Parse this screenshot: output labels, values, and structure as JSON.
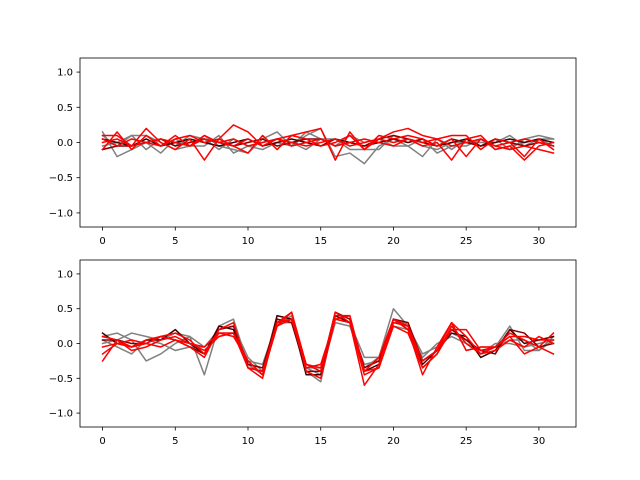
{
  "chart_data": [
    {
      "type": "line",
      "title": "",
      "xlabel": "",
      "ylabel": "",
      "xlim": [
        -1.55,
        32.55
      ],
      "ylim": [
        -1.2,
        1.2
      ],
      "x_ticks": [
        0,
        5,
        10,
        15,
        20,
        25,
        30
      ],
      "y_ticks": [
        -1.0,
        -0.5,
        0.0,
        0.5,
        1.0
      ],
      "grid": false,
      "x": [
        0,
        1,
        2,
        3,
        4,
        5,
        6,
        7,
        8,
        9,
        10,
        11,
        12,
        13,
        14,
        15,
        16,
        17,
        18,
        19,
        20,
        21,
        22,
        23,
        24,
        25,
        26,
        27,
        28,
        29,
        30,
        31
      ],
      "series": [
        {
          "color": "#808080",
          "values": [
            0.15,
            -0.2,
            -0.1,
            0.0,
            -0.15,
            0.05,
            -0.05,
            -0.05,
            0.1,
            -0.15,
            -0.05,
            -0.1,
            0.0,
            -0.05,
            0.1,
            0.2,
            -0.2,
            -0.15,
            -0.3,
            -0.05,
            0.05,
            -0.05,
            -0.2,
            0.05,
            -0.1,
            0.05,
            -0.05,
            0.05,
            -0.1,
            0.05,
            0.1,
            0.05
          ]
        },
        {
          "color": "#808080",
          "values": [
            0.1,
            -0.05,
            0.1,
            0.1,
            0.0,
            -0.1,
            -0.05,
            0.1,
            -0.05,
            -0.1,
            -0.15,
            0.05,
            0.15,
            -0.05,
            0.15,
            0.05,
            0.05,
            -0.1,
            -0.1,
            -0.1,
            0.1,
            0.05,
            -0.05,
            -0.1,
            0.0,
            0.0,
            0.0,
            0.0,
            0.1,
            -0.05,
            0.05,
            0.05
          ]
        },
        {
          "color": "#808080",
          "values": [
            -0.05,
            0.0,
            0.1,
            -0.1,
            0.05,
            -0.05,
            0.1,
            0.05,
            -0.1,
            0.05,
            -0.05,
            0.0,
            0.05,
            0.0,
            -0.1,
            0.05,
            -0.05,
            0.1,
            0.0,
            0.05,
            -0.05,
            -0.05,
            0.05,
            -0.15,
            -0.05,
            -0.05,
            0.05,
            -0.1,
            -0.05,
            0.0,
            0.05,
            -0.05
          ]
        },
        {
          "color": "#400000",
          "values": [
            0.05,
            0.0,
            -0.05,
            0.05,
            -0.05,
            0.0,
            0.05,
            0.0,
            -0.05,
            0.0,
            0.05,
            -0.05,
            0.0,
            0.05,
            0.0,
            -0.05,
            0.05,
            0.0,
            -0.05,
            0.0,
            0.05,
            0.0,
            0.05,
            -0.05,
            0.0,
            0.05,
            -0.05,
            0.0,
            0.05,
            0.0,
            0.05,
            0.0
          ]
        },
        {
          "color": "#800000",
          "values": [
            -0.1,
            -0.05,
            -0.05,
            0.0,
            0.05,
            -0.05,
            0.0,
            0.05,
            0.0,
            -0.05,
            0.0,
            0.05,
            -0.05,
            0.0,
            0.05,
            0.05,
            -0.05,
            0.0,
            -0.05,
            0.05,
            0.1,
            0.05,
            0.0,
            -0.05,
            0.05,
            0.0,
            -0.05,
            0.05,
            0.0,
            -0.05,
            0.0,
            -0.05
          ]
        },
        {
          "color": "#ff0000",
          "values": [
            0.1,
            0.1,
            -0.05,
            0.2,
            0.0,
            -0.1,
            0.05,
            -0.25,
            0.05,
            0.25,
            0.15,
            -0.05,
            0.05,
            0.1,
            0.15,
            0.2,
            -0.25,
            0.15,
            -0.1,
            0.05,
            0.15,
            0.2,
            0.1,
            0.05,
            0.1,
            0.1,
            -0.1,
            0.05,
            0.0,
            -0.2,
            0.05,
            -0.1
          ]
        },
        {
          "color": "#ff0000",
          "values": [
            0.05,
            -0.05,
            0.05,
            0.0,
            -0.05,
            0.1,
            -0.05,
            0.1,
            0.0,
            -0.05,
            -0.15,
            0.1,
            -0.1,
            0.1,
            0.05,
            -0.05,
            0.0,
            0.1,
            -0.1,
            0.1,
            0.05,
            0.1,
            0.05,
            -0.05,
            0.05,
            -0.2,
            0.05,
            -0.05,
            -0.1,
            -0.05,
            -0.1,
            -0.15
          ]
        },
        {
          "color": "#ff0000",
          "values": [
            -0.1,
            0.15,
            -0.1,
            0.1,
            -0.05,
            0.05,
            0.1,
            0.0,
            0.05,
            -0.05,
            0.05,
            -0.05,
            0.05,
            0.0,
            -0.05,
            0.0,
            0.05,
            -0.05,
            0.0,
            0.05,
            0.0,
            0.05,
            -0.05,
            0.0,
            -0.25,
            0.05,
            0.1,
            -0.1,
            -0.05,
            -0.25,
            -0.05,
            0.0
          ]
        },
        {
          "color": "#ff0000",
          "values": [
            0.0,
            0.05,
            -0.05,
            0.0,
            0.05,
            0.0,
            -0.05,
            0.05,
            0.0,
            0.05,
            -0.05,
            0.0,
            0.05,
            -0.05,
            0.0,
            0.05,
            -0.05,
            0.0,
            0.05,
            0.0,
            -0.05,
            0.05,
            0.0,
            0.05,
            -0.05,
            0.0,
            0.05,
            -0.05,
            0.0,
            0.05,
            0.0,
            -0.05
          ]
        }
      ]
    },
    {
      "type": "line",
      "title": "",
      "xlabel": "",
      "ylabel": "",
      "xlim": [
        -1.55,
        32.55
      ],
      "ylim": [
        -1.2,
        1.2
      ],
      "x_ticks": [
        0,
        5,
        10,
        15,
        20,
        25,
        30
      ],
      "y_ticks": [
        -1.0,
        -0.5,
        0.0,
        0.5,
        1.0
      ],
      "grid": false,
      "x": [
        0,
        1,
        2,
        3,
        4,
        5,
        6,
        7,
        8,
        9,
        10,
        11,
        12,
        13,
        14,
        15,
        16,
        17,
        18,
        19,
        20,
        21,
        22,
        23,
        24,
        25,
        26,
        27,
        28,
        29,
        30,
        31
      ],
      "series": [
        {
          "color": "#808080",
          "values": [
            0.1,
            0.15,
            0.05,
            -0.25,
            -0.15,
            0.0,
            0.1,
            -0.45,
            0.25,
            0.35,
            -0.3,
            -0.45,
            0.4,
            0.35,
            -0.4,
            -0.55,
            0.4,
            0.3,
            -0.2,
            -0.2,
            0.5,
            0.25,
            -0.15,
            -0.05,
            0.3,
            -0.1,
            -0.05,
            -0.05,
            0.25,
            -0.1,
            -0.1,
            0.1
          ]
        },
        {
          "color": "#808080",
          "values": [
            0.05,
            -0.05,
            -0.15,
            0.05,
            0.0,
            -0.1,
            -0.05,
            -0.05,
            0.1,
            0.15,
            -0.25,
            -0.3,
            0.3,
            0.3,
            -0.35,
            -0.45,
            0.3,
            0.25,
            -0.3,
            -0.25,
            0.3,
            0.3,
            -0.25,
            -0.1,
            0.15,
            0.05,
            -0.15,
            0.0,
            0.0,
            -0.05,
            0.0,
            0.05
          ]
        },
        {
          "color": "#808080",
          "values": [
            0.0,
            0.05,
            0.15,
            0.1,
            0.05,
            0.15,
            0.1,
            -0.05,
            0.2,
            0.25,
            -0.2,
            -0.4,
            0.25,
            0.4,
            -0.35,
            -0.35,
            0.35,
            0.3,
            -0.35,
            -0.2,
            0.25,
            0.2,
            -0.2,
            0.0,
            0.1,
            0.0,
            -0.1,
            -0.05,
            0.05,
            0.05,
            -0.1,
            0.05
          ]
        },
        {
          "color": "#400000",
          "values": [
            0.15,
            0.0,
            -0.05,
            0.05,
            0.05,
            0.2,
            0.0,
            -0.15,
            0.25,
            0.2,
            -0.35,
            -0.4,
            0.4,
            0.35,
            -0.45,
            -0.45,
            0.4,
            0.3,
            -0.4,
            -0.3,
            0.35,
            0.2,
            -0.3,
            -0.1,
            0.15,
            0.1,
            -0.2,
            -0.1,
            0.2,
            0.0,
            0.05,
            0.1
          ]
        },
        {
          "color": "#800000",
          "values": [
            0.05,
            0.05,
            0.0,
            0.0,
            0.1,
            0.05,
            -0.05,
            -0.15,
            0.2,
            0.25,
            -0.3,
            -0.35,
            0.35,
            0.3,
            -0.4,
            -0.4,
            0.45,
            0.35,
            -0.35,
            -0.25,
            0.35,
            0.3,
            -0.25,
            -0.1,
            0.2,
            0.05,
            -0.1,
            -0.15,
            0.2,
            0.15,
            -0.05,
            0.0
          ]
        },
        {
          "color": "#ff0000",
          "values": [
            -0.25,
            0.05,
            -0.05,
            0.05,
            0.1,
            0.15,
            0.05,
            -0.15,
            0.15,
            0.15,
            -0.25,
            -0.45,
            0.25,
            0.45,
            -0.3,
            -0.4,
            0.45,
            0.3,
            -0.6,
            -0.3,
            0.35,
            0.2,
            -0.45,
            -0.05,
            0.3,
            -0.1,
            -0.05,
            -0.05,
            0.1,
            -0.15,
            -0.05,
            0.15
          ]
        },
        {
          "color": "#ff0000",
          "values": [
            -0.05,
            0.0,
            -0.05,
            0.0,
            0.1,
            0.05,
            -0.05,
            -0.2,
            0.2,
            0.3,
            -0.35,
            -0.5,
            0.3,
            0.45,
            -0.4,
            -0.5,
            0.35,
            0.4,
            -0.4,
            -0.35,
            0.3,
            0.25,
            -0.35,
            -0.15,
            0.2,
            0.2,
            -0.1,
            -0.05,
            0.15,
            0.05,
            -0.05,
            -0.15
          ]
        },
        {
          "color": "#ff0000",
          "values": [
            0.1,
            0.05,
            -0.1,
            -0.05,
            0.05,
            0.1,
            0.0,
            -0.1,
            0.1,
            0.15,
            -0.35,
            -0.4,
            0.3,
            0.35,
            -0.3,
            -0.35,
            0.4,
            0.4,
            -0.4,
            -0.2,
            0.35,
            0.25,
            -0.25,
            -0.1,
            0.3,
            0.1,
            -0.15,
            -0.05,
            0.1,
            0.1,
            0.05,
            0.05
          ]
        },
        {
          "color": "#ff0000",
          "values": [
            -0.15,
            0.0,
            0.05,
            0.0,
            -0.05,
            0.05,
            0.0,
            -0.05,
            0.15,
            0.1,
            -0.25,
            -0.45,
            0.25,
            0.35,
            -0.35,
            -0.3,
            0.35,
            0.3,
            -0.45,
            -0.35,
            0.25,
            0.15,
            -0.35,
            -0.15,
            0.25,
            0.0,
            -0.15,
            -0.1,
            0.05,
            -0.05,
            0.1,
            0.0
          ]
        }
      ]
    }
  ]
}
